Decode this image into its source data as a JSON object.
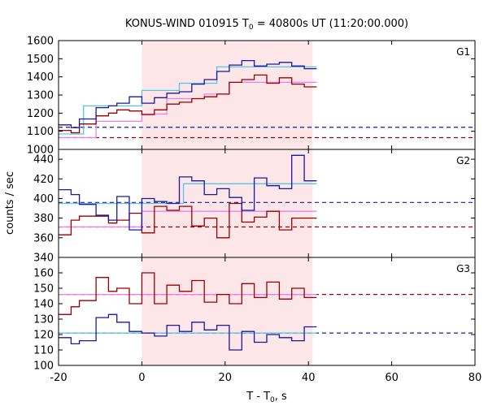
{
  "chart_data": {
    "type": "line",
    "title_prefix": "KONUS-WIND 010915 T",
    "title_sub": "0",
    "title_suffix": " = 40800s UT (11:20:00.000)",
    "xlabel_prefix": "T - T",
    "xlabel_sub": "0",
    "xlabel_suffix": ", s",
    "ylabel": "counts / sec",
    "xlim": [
      -20,
      80
    ],
    "x_ticks": [
      "-20",
      "0",
      "20",
      "40",
      "60",
      "80"
    ],
    "shaded_interval": [
      0,
      41
    ],
    "colors": {
      "dark_red": "#9b0000",
      "dark_blue": "#1a1aa0",
      "pink": "#ee80ee",
      "cyan": "#55c4e8",
      "shade": "#fde6e8"
    },
    "panels": [
      {
        "label": "G1",
        "ylim": [
          1000,
          1600
        ],
        "y_ticks": [
          "1000",
          "1100",
          "1200",
          "1300",
          "1400",
          "1500",
          "1600"
        ],
        "red_line": {
          "edges": [
            -20,
            -17,
            -15,
            -11,
            -8,
            -6,
            -3,
            0,
            3,
            6,
            9,
            12,
            15,
            18,
            21,
            24,
            27,
            30,
            33,
            36,
            39,
            42
          ],
          "values": [
            1105,
            1092,
            1140,
            1185,
            1200,
            1218,
            1212,
            1192,
            1218,
            1250,
            1260,
            1280,
            1290,
            1305,
            1370,
            1385,
            1410,
            1365,
            1395,
            1360,
            1345
          ]
        },
        "blue_line": {
          "edges": [
            -20,
            -17,
            -15,
            -11,
            -8,
            -6,
            -3,
            0,
            3,
            6,
            9,
            12,
            15,
            18,
            21,
            24,
            27,
            30,
            33,
            36,
            39,
            42
          ],
          "values": [
            1135,
            1120,
            1168,
            1230,
            1240,
            1255,
            1290,
            1255,
            1285,
            1310,
            1318,
            1360,
            1385,
            1430,
            1465,
            1490,
            1460,
            1470,
            1480,
            1460,
            1445
          ]
        },
        "pink_steps": {
          "edges": [
            -20,
            -11,
            0,
            6,
            15,
            21,
            42
          ],
          "values": [
            1065,
            1155,
            1195,
            1280,
            1305,
            1370
          ]
        },
        "cyan_steps": {
          "edges": [
            -20,
            -14,
            0,
            9,
            18,
            42
          ],
          "values": [
            1085,
            1240,
            1325,
            1365,
            1455
          ]
        },
        "red_dash": 1065,
        "blue_dash": 1122
      },
      {
        "label": "G2",
        "ylim": [
          340,
          450
        ],
        "y_ticks": [
          "340",
          "360",
          "380",
          "400",
          "420",
          "440"
        ],
        "red_line": {
          "edges": [
            -20,
            -17,
            -15,
            -11,
            -8,
            -6,
            -3,
            0,
            3,
            6,
            9,
            12,
            15,
            18,
            21,
            24,
            27,
            30,
            33,
            36,
            39,
            42
          ],
          "values": [
            363,
            378,
            382,
            382,
            375,
            378,
            385,
            365,
            392,
            388,
            392,
            372,
            380,
            360,
            395,
            376,
            381,
            387,
            368,
            380,
            380
          ]
        },
        "blue_line": {
          "edges": [
            -20,
            -17,
            -15,
            -11,
            -8,
            -6,
            -3,
            0,
            3,
            6,
            9,
            12,
            15,
            18,
            21,
            24,
            27,
            30,
            33,
            36,
            39,
            42
          ],
          "values": [
            409,
            404,
            394,
            383,
            378,
            402,
            368,
            400,
            397,
            395,
            422,
            418,
            404,
            410,
            401,
            388,
            421,
            413,
            410,
            444,
            418
          ]
        },
        "pink_steps": {
          "edges": [
            -20,
            -11,
            0,
            42
          ],
          "values": [
            371,
            371,
            387
          ]
        },
        "cyan_steps": {
          "edges": [
            -20,
            0,
            10,
            42
          ],
          "values": [
            395,
            395,
            415
          ]
        },
        "red_dash": 371,
        "blue_dash": 396
      },
      {
        "label": "G3",
        "ylim": [
          100,
          170
        ],
        "y_ticks": [
          "100",
          "110",
          "120",
          "130",
          "140",
          "150",
          "160"
        ],
        "red_line": {
          "edges": [
            -20,
            -17,
            -15,
            -11,
            -8,
            -6,
            -3,
            0,
            3,
            6,
            9,
            12,
            15,
            18,
            21,
            24,
            27,
            30,
            33,
            36,
            39,
            42
          ],
          "values": [
            133,
            138,
            142,
            157,
            148,
            150,
            140,
            160,
            140,
            152,
            148,
            155,
            141,
            146,
            140,
            153,
            144,
            154,
            143,
            150,
            144
          ]
        },
        "blue_line": {
          "edges": [
            -20,
            -17,
            -15,
            -11,
            -8,
            -6,
            -3,
            0,
            3,
            6,
            9,
            12,
            15,
            18,
            21,
            24,
            27,
            30,
            33,
            36,
            39,
            42
          ],
          "values": [
            118,
            114,
            116,
            131,
            133,
            128,
            122,
            121,
            119,
            126,
            122,
            128,
            123,
            126,
            110,
            122,
            115,
            120,
            118,
            116,
            125
          ]
        },
        "pink_steps": {
          "edges": [
            -20,
            42
          ],
          "values": [
            146
          ]
        },
        "cyan_steps": {
          "edges": [
            -20,
            42
          ],
          "values": [
            121
          ]
        },
        "red_dash": 146,
        "blue_dash": 121
      }
    ]
  }
}
